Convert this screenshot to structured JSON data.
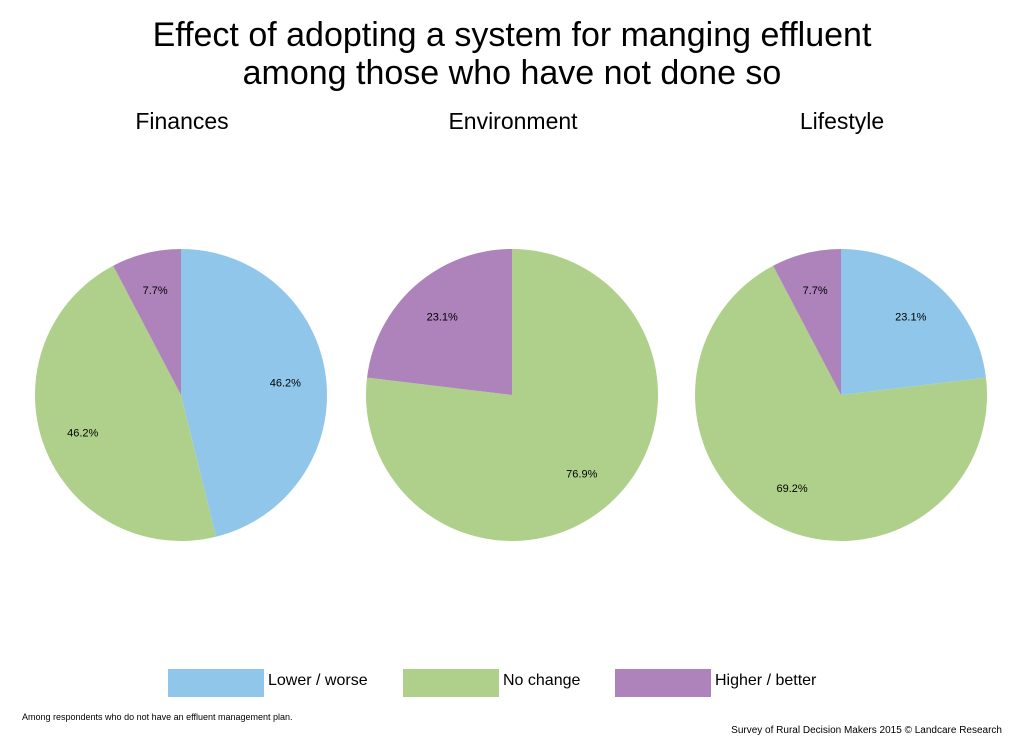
{
  "title_line1": "Effect of adopting a system for manging effluent",
  "title_line2": "among those who have not done so",
  "colors": {
    "lower_worse": "#8fc6ea",
    "no_change": "#afd08a",
    "higher_better": "#ae83bb"
  },
  "chart_data": [
    {
      "type": "pie",
      "title": "Finances",
      "slices": [
        {
          "label": "Lower / worse",
          "value": 46.2,
          "data_label": "46.2%"
        },
        {
          "label": "No change",
          "value": 46.2,
          "data_label": "46.2%"
        },
        {
          "label": "Higher / better",
          "value": 7.7,
          "data_label": "7.7%"
        }
      ]
    },
    {
      "type": "pie",
      "title": "Environment",
      "slices": [
        {
          "label": "Lower / worse",
          "value": 0,
          "data_label": ""
        },
        {
          "label": "No change",
          "value": 76.9,
          "data_label": "76.9%"
        },
        {
          "label": "Higher / better",
          "value": 23.1,
          "data_label": "23.1%"
        }
      ]
    },
    {
      "type": "pie",
      "title": "Lifestyle",
      "slices": [
        {
          "label": "Lower / worse",
          "value": 23.1,
          "data_label": "23.1%"
        },
        {
          "label": "No change",
          "value": 69.2,
          "data_label": "69.2%"
        },
        {
          "label": "Higher / better",
          "value": 7.7,
          "data_label": "7.7%"
        }
      ]
    }
  ],
  "legend": {
    "lower_worse": "Lower / worse",
    "no_change": "No change",
    "higher_better": "Higher / better"
  },
  "footnote": "Among respondents who do not have an effluent management plan.",
  "source": "Survey of Rural Decision Makers 2015 © Landcare Research"
}
